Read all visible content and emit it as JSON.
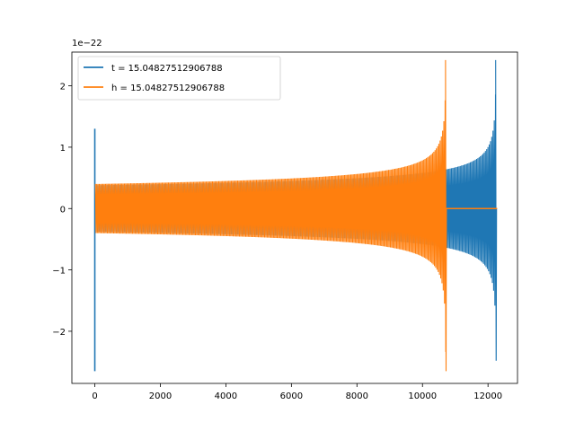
{
  "chart_data": {
    "type": "line",
    "title": "",
    "xlabel": "",
    "ylabel": "",
    "xlim": [
      -700,
      12900
    ],
    "ylim": [
      -2.85,
      2.55
    ],
    "y_scale_label": "1e−22",
    "x_ticks": [
      0,
      2000,
      4000,
      6000,
      8000,
      10000,
      12000
    ],
    "x_tick_labels": [
      "0",
      "2000",
      "4000",
      "6000",
      "8000",
      "10000",
      "12000"
    ],
    "y_ticks": [
      -2,
      -1,
      0,
      1,
      2
    ],
    "y_tick_labels": [
      "−2",
      "−1",
      "0",
      "1",
      "2"
    ],
    "grid": false,
    "legend_position": "top-left",
    "series": [
      {
        "name": "t = 15.04827512906788",
        "color": "#1f77b4",
        "description_points": {
          "initial_spike": {
            "x": 0,
            "ymin": -2.65,
            "ymax": 1.3
          },
          "start_amplitude": 0.38,
          "amplitude_at_10700": 0.63,
          "merger_x": 12250,
          "merger_peak": 2.42,
          "merger_trough": -2.48,
          "end_x": 12280
        }
      },
      {
        "name": "h = 15.04827512906788",
        "color": "#ff7f0e",
        "description_points": {
          "start_x": 20,
          "start_amplitude": 0.4,
          "merger_x": 10720,
          "merger_peak": 2.42,
          "merger_trough": -2.65,
          "flat_after_merger": 0,
          "end_x": 12280
        }
      }
    ]
  }
}
